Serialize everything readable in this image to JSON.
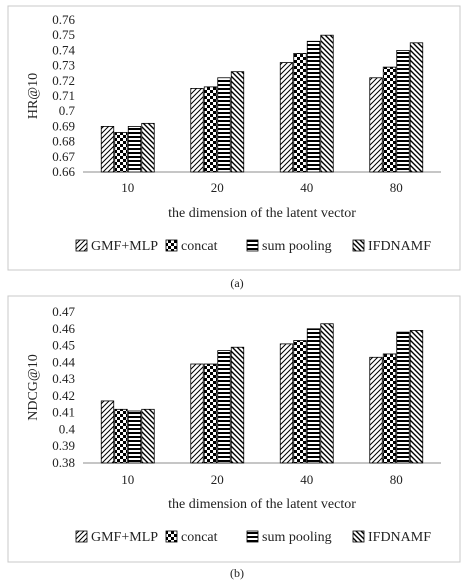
{
  "chart_data": [
    {
      "type": "bar",
      "panel_caption": "(a)",
      "ylabel": "HR@10",
      "xlabel": "the dimension of the latent vector",
      "categories": [
        "10",
        "20",
        "40",
        "80"
      ],
      "ylim": [
        0.66,
        0.76
      ],
      "ytick_step": 0.01,
      "yticks": [
        "0.66",
        "0.67",
        "0.68",
        "0.69",
        "0.7",
        "0.71",
        "0.72",
        "0.73",
        "0.74",
        "0.75",
        "0.76"
      ],
      "grid": false,
      "legend_position": "bottom",
      "series": [
        {
          "name": "GMF+MLP",
          "pattern": "diagonal-forward",
          "values": [
            0.69,
            0.715,
            0.732,
            0.722
          ]
        },
        {
          "name": "concat",
          "pattern": "checker",
          "values": [
            0.686,
            0.716,
            0.738,
            0.729
          ]
        },
        {
          "name": "sum pooling",
          "pattern": "horizontal",
          "values": [
            0.69,
            0.722,
            0.746,
            0.74
          ]
        },
        {
          "name": "IFDNAMF",
          "pattern": "diagonal-back",
          "values": [
            0.692,
            0.726,
            0.75,
            0.745
          ]
        }
      ]
    },
    {
      "type": "bar",
      "panel_caption": "(b)",
      "ylabel": "NDCG@10",
      "xlabel": "the dimension of the latent vector",
      "categories": [
        "10",
        "20",
        "40",
        "80"
      ],
      "ylim": [
        0.38,
        0.47
      ],
      "ytick_step": 0.01,
      "yticks": [
        "0.38",
        "0.39",
        "0.4",
        "0.41",
        "0.42",
        "0.43",
        "0.44",
        "0.45",
        "0.46",
        "0.47"
      ],
      "grid": false,
      "legend_position": "bottom",
      "series": [
        {
          "name": "GMF+MLP",
          "pattern": "diagonal-forward",
          "values": [
            0.417,
            0.439,
            0.451,
            0.443
          ]
        },
        {
          "name": "concat",
          "pattern": "checker",
          "values": [
            0.412,
            0.439,
            0.453,
            0.445
          ]
        },
        {
          "name": "sum pooling",
          "pattern": "horizontal",
          "values": [
            0.411,
            0.447,
            0.46,
            0.458
          ]
        },
        {
          "name": "IFDNAMF",
          "pattern": "diagonal-back",
          "values": [
            0.412,
            0.449,
            0.463,
            0.459
          ]
        }
      ]
    }
  ],
  "colors": {
    "frame": "#c8c8c8",
    "bar_stroke": "#000000",
    "axis": "#8c8c8c",
    "text": "#222222"
  }
}
